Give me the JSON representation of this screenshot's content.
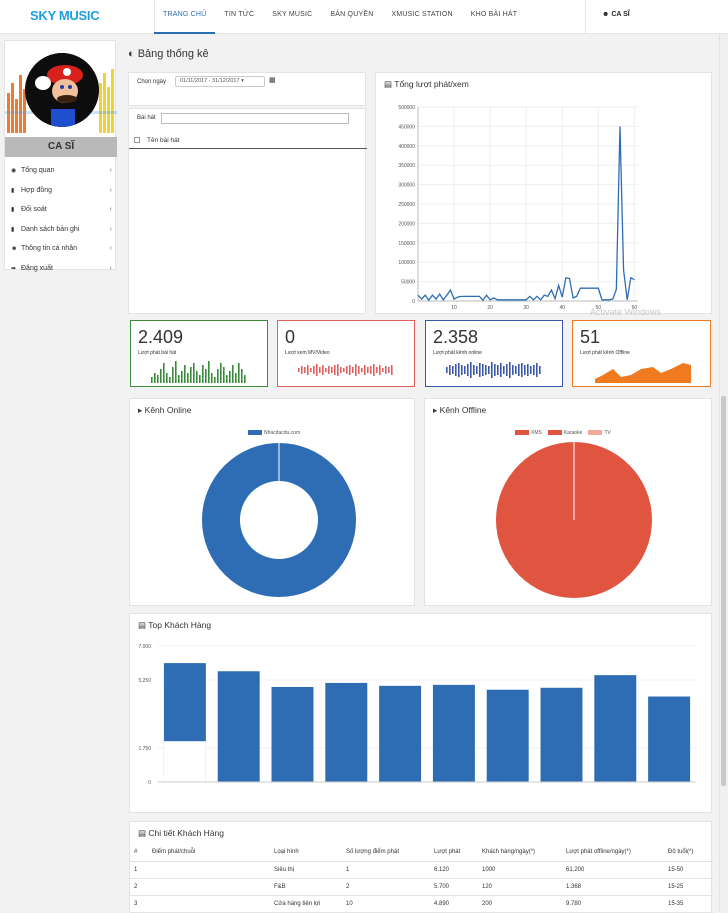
{
  "app": {
    "logo": "SKY MUSIC",
    "user": "CA SĨ"
  },
  "nav": [
    "TRANG CHỦ",
    "TIN TỨC",
    "SKY MUSIC",
    "BẢN QUYỀN",
    "XMUSIC STATION",
    "KHO BÀI HÁT"
  ],
  "sidebar": {
    "role": "CA SĨ",
    "items": [
      {
        "label": "Tổng quan",
        "icon": "dashboard-icon"
      },
      {
        "label": "Hợp đồng",
        "icon": "document-icon"
      },
      {
        "label": "Đối soát",
        "icon": "document-icon"
      },
      {
        "label": "Danh sách bản ghi",
        "icon": "document-icon"
      },
      {
        "label": "Thông tin cá nhân",
        "icon": "user-icon"
      },
      {
        "label": "Đăng xuất",
        "icon": "logout-icon"
      }
    ]
  },
  "page": {
    "title": "Bảng thống kê"
  },
  "filter": {
    "label": "Chọn ngày",
    "date_range": "01/11/2017 - 31/12/2017",
    "song_label": "Bài hát",
    "col_title": "Tên bài hát"
  },
  "plays_panel": {
    "title": "Tổng lượt phát/xem"
  },
  "stats": [
    {
      "value": "2.409",
      "label": "Lượt phát bài hát",
      "color": "#3a8a3a"
    },
    {
      "value": "0",
      "label": "Lượt xem MV/Video",
      "color": "#e06060"
    },
    {
      "value": "2.358",
      "label": "Lượt phát kênh online",
      "color": "#3b57a8"
    },
    {
      "value": "51",
      "label": "Lượt phát kênh Offline",
      "color": "#f07a20"
    }
  ],
  "watermark": "Activate Windows",
  "online": {
    "title": "Kênh Online",
    "legend": [
      "Nhacdacdu.com"
    ]
  },
  "offline": {
    "title": "Kênh Offline",
    "legend": [
      "XMS",
      "Karaoke",
      "TV"
    ]
  },
  "top": {
    "title": "Top Khách Hàng"
  },
  "detail": {
    "title": "Chi tiết Khách Hàng",
    "headers": [
      "#",
      "Điểm phát/chuỗi",
      "Loại hình",
      "Số lượng điểm phát",
      "Lượt phát",
      "Khách hàng/ngày(*)",
      "Lượt phát offline/ngày(*)",
      "Độ tuổi(*)"
    ],
    "rows": [
      [
        "1",
        "",
        "Siêu thị",
        "1",
        "6.120",
        "1000",
        "61.200",
        "15-50"
      ],
      [
        "2",
        "",
        "F&B",
        "2",
        "5.700",
        "120",
        "1.368",
        "15-25"
      ],
      [
        "3",
        "",
        "Cửa hàng tiện lợi",
        "10",
        "4.890",
        "200",
        "9.780",
        "15-35"
      ]
    ]
  },
  "colors": {
    "accent": "#2a6db3",
    "blue": "#2e6db4",
    "red": "#e0553f"
  },
  "chart_data": [
    {
      "type": "line",
      "title": "Tổng lượt phát/xem",
      "x_ticks": [
        10,
        20,
        30,
        40,
        50,
        60
      ],
      "y_ticks": [
        "0",
        "50000",
        "100000",
        "150000",
        "200000",
        "250000",
        "300000",
        "350000",
        "400000",
        "450000",
        "500000"
      ],
      "xlim": [
        0,
        61
      ],
      "ylim": [
        0,
        500000
      ],
      "x": [
        0,
        1,
        2,
        3,
        4,
        5,
        6,
        7,
        8,
        9,
        10,
        11,
        12,
        13,
        14,
        15,
        16,
        17,
        18,
        19,
        20,
        21,
        22,
        23,
        24,
        25,
        26,
        27,
        28,
        29,
        30,
        31,
        32,
        33,
        34,
        35,
        36,
        37,
        38,
        39,
        40,
        41,
        42,
        43,
        44,
        45,
        46,
        47,
        48,
        49,
        50,
        51,
        52,
        53,
        54,
        55,
        56,
        57,
        58,
        59,
        60
      ],
      "values": [
        15000,
        5000,
        15000,
        2000,
        15000,
        5000,
        18000,
        3000,
        15000,
        28000,
        5000,
        10000,
        12000,
        12000,
        12000,
        12000,
        12000,
        12000,
        2000,
        15000,
        3000,
        8000,
        3000,
        3000,
        3000,
        3000,
        3000,
        3000,
        3000,
        3000,
        3000,
        12000,
        3000,
        12000,
        3000,
        15000,
        12000,
        28000,
        6000,
        40000,
        10000,
        60000,
        58000,
        8000,
        12000,
        33000,
        33000,
        33000,
        33000,
        33000,
        33000,
        3000,
        3000,
        3000,
        5000,
        30000,
        450000,
        80000,
        3000,
        60000,
        55000
      ]
    },
    {
      "type": "pie",
      "title": "Kênh Online",
      "labels": [
        "Nhacdacdu.com"
      ],
      "values": [
        100
      ],
      "donut": true
    },
    {
      "type": "pie",
      "title": "Kênh Offline",
      "labels": [
        "XMS",
        "Karaoke",
        "TV"
      ],
      "values": [
        0,
        100,
        0
      ]
    },
    {
      "type": "bar",
      "title": "Top Khách Hàng",
      "y_ticks": [
        "0",
        "1.750",
        "5.250",
        "7.000"
      ],
      "ylim": [
        0,
        7000
      ],
      "values": [
        6120,
        5700,
        4890,
        5100,
        4950,
        5000,
        4750,
        4850,
        5500,
        4400
      ]
    }
  ]
}
